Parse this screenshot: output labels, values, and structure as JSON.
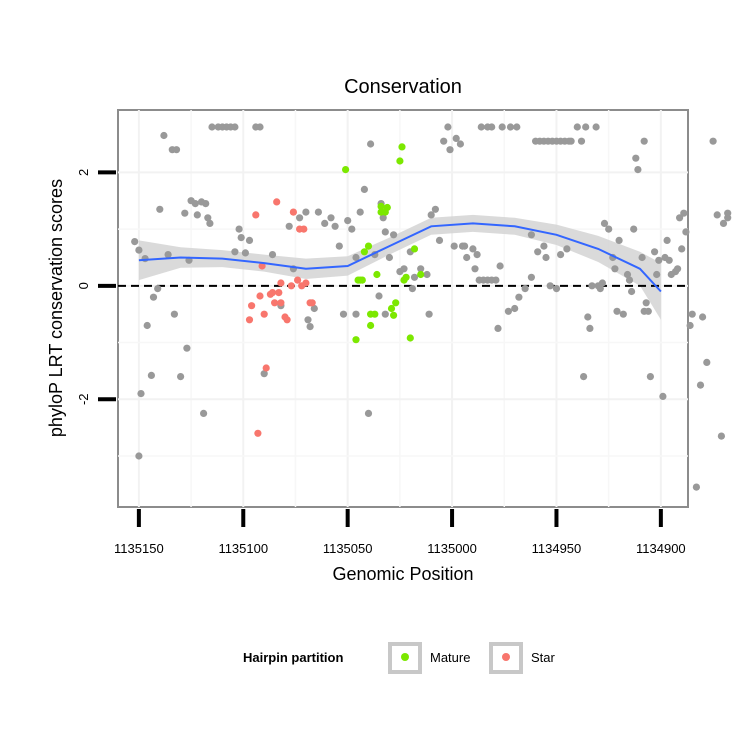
{
  "chart_data": {
    "type": "scatter",
    "title": "Conservation",
    "xlabel": "Genomic Position",
    "ylabel": "phyloP LRT conservation scores",
    "x_reversed": true,
    "xlim": [
      1134887,
      1135160
    ],
    "ylim": [
      -3.9,
      3.1
    ],
    "x_ticks": [
      1135150,
      1135100,
      1135050,
      1135000,
      1134950,
      1134900
    ],
    "x_tick_labels": [
      "1135150",
      "1135100",
      "1135050",
      "1135000",
      "1134950",
      "1134900"
    ],
    "y_ticks": [
      -2,
      0,
      2
    ],
    "y_tick_labels": [
      "-2",
      "0",
      "2"
    ],
    "grid": true,
    "reference_line": {
      "y": 0,
      "style": "dashed"
    },
    "colors": {
      "other": "#999999",
      "mature": "#7CE800",
      "star": "#F8766D",
      "smooth_line": "#3366FF",
      "smooth_band": "#D3D3D3"
    },
    "legend": {
      "title": "Hairpin partition",
      "position": "bottom",
      "entries": [
        {
          "label": "Mature",
          "series": "mature"
        },
        {
          "label": "Star",
          "series": "star"
        }
      ]
    },
    "series": [
      {
        "name": "other",
        "points": [
          [
            1135152,
            0.78
          ],
          [
            1135150,
            0.63
          ],
          [
            1135149,
            -1.9
          ],
          [
            1135150,
            -3.0
          ],
          [
            1135147,
            0.48
          ],
          [
            1135146,
            -0.7
          ],
          [
            1135144,
            -1.58
          ],
          [
            1135143,
            -0.2
          ],
          [
            1135141,
            -0.05
          ],
          [
            1135140,
            1.35
          ],
          [
            1135138,
            2.65
          ],
          [
            1135136,
            0.55
          ],
          [
            1135134,
            2.4
          ],
          [
            1135132,
            2.4
          ],
          [
            1135133,
            -0.5
          ],
          [
            1135130,
            -1.6
          ],
          [
            1135128,
            1.28
          ],
          [
            1135127,
            -1.1
          ],
          [
            1135126,
            0.45
          ],
          [
            1135125,
            1.5
          ],
          [
            1135123,
            1.45
          ],
          [
            1135122,
            1.25
          ],
          [
            1135120,
            1.48
          ],
          [
            1135119,
            -2.25
          ],
          [
            1135118,
            1.45
          ],
          [
            1135117,
            1.2
          ],
          [
            1135116,
            1.1
          ],
          [
            1135115,
            2.8
          ],
          [
            1135112,
            2.8
          ],
          [
            1135110,
            2.8
          ],
          [
            1135108,
            2.8
          ],
          [
            1135106,
            2.8
          ],
          [
            1135104,
            2.8
          ],
          [
            1135104,
            0.6
          ],
          [
            1135102,
            1.0
          ],
          [
            1135101,
            0.85
          ],
          [
            1135099,
            0.58
          ],
          [
            1135097,
            0.8
          ],
          [
            1135094,
            2.8
          ],
          [
            1135092,
            2.8
          ],
          [
            1135090,
            -1.55
          ],
          [
            1135086,
            0.55
          ],
          [
            1135082,
            -0.35
          ],
          [
            1135078,
            1.05
          ],
          [
            1135076,
            0.3
          ],
          [
            1135073,
            1.2
          ],
          [
            1135070,
            1.3
          ],
          [
            1135069,
            -0.6
          ],
          [
            1135068,
            -0.72
          ],
          [
            1135066,
            -0.4
          ],
          [
            1135064,
            1.3
          ],
          [
            1135061,
            1.1
          ],
          [
            1135058,
            1.2
          ],
          [
            1135056,
            1.05
          ],
          [
            1135054,
            0.7
          ],
          [
            1135052,
            -0.5
          ],
          [
            1135050,
            1.15
          ],
          [
            1135048,
            1.0
          ],
          [
            1135046,
            0.5
          ],
          [
            1135046,
            -0.5
          ],
          [
            1135044,
            1.3
          ],
          [
            1135042,
            1.7
          ],
          [
            1135040,
            -2.25
          ],
          [
            1135039,
            2.5
          ],
          [
            1135037,
            0.55
          ],
          [
            1135035,
            -0.18
          ],
          [
            1135034,
            1.45
          ],
          [
            1135033,
            1.2
          ],
          [
            1135032,
            -0.5
          ],
          [
            1135032,
            0.95
          ],
          [
            1135030,
            0.5
          ],
          [
            1135028,
            0.9
          ],
          [
            1135025,
            0.25
          ],
          [
            1135023,
            0.3
          ],
          [
            1135020,
            0.6
          ],
          [
            1135019,
            -0.05
          ],
          [
            1135018,
            0.15
          ],
          [
            1135015,
            0.3
          ],
          [
            1135012,
            0.2
          ],
          [
            1135011,
            -0.5
          ],
          [
            1135010,
            1.25
          ],
          [
            1135008,
            1.35
          ],
          [
            1135006,
            0.8
          ],
          [
            1135004,
            2.55
          ],
          [
            1135002,
            2.8
          ],
          [
            1135001,
            2.4
          ],
          [
            1134999,
            0.7
          ],
          [
            1134998,
            2.6
          ],
          [
            1134996,
            2.5
          ],
          [
            1134995,
            0.7
          ],
          [
            1134994,
            0.7
          ],
          [
            1134993,
            0.5
          ],
          [
            1134990,
            0.65
          ],
          [
            1134989,
            0.3
          ],
          [
            1134988,
            0.55
          ],
          [
            1134987,
            0.1
          ],
          [
            1134985,
            0.1
          ],
          [
            1134983,
            0.1
          ],
          [
            1134981,
            0.1
          ],
          [
            1134979,
            0.1
          ],
          [
            1134977,
            0.35
          ],
          [
            1134986,
            2.8
          ],
          [
            1134983,
            2.8
          ],
          [
            1134981,
            2.8
          ],
          [
            1134976,
            2.8
          ],
          [
            1134972,
            2.8
          ],
          [
            1134969,
            2.8
          ],
          [
            1134978,
            -0.75
          ],
          [
            1134973,
            -0.45
          ],
          [
            1134970,
            -0.4
          ],
          [
            1134968,
            -0.2
          ],
          [
            1134965,
            -0.05
          ],
          [
            1134962,
            0.9
          ],
          [
            1134960,
            2.55
          ],
          [
            1134958,
            2.55
          ],
          [
            1134956,
            2.55
          ],
          [
            1134954,
            2.55
          ],
          [
            1134952,
            2.55
          ],
          [
            1134950,
            2.55
          ],
          [
            1134948,
            2.55
          ],
          [
            1134946,
            2.55
          ],
          [
            1134944,
            2.55
          ],
          [
            1134962,
            0.15
          ],
          [
            1134959,
            0.6
          ],
          [
            1134956,
            0.7
          ],
          [
            1134955,
            0.5
          ],
          [
            1134953,
            0.0
          ],
          [
            1134950,
            -0.05
          ],
          [
            1134948,
            0.55
          ],
          [
            1134945,
            0.65
          ],
          [
            1134943,
            2.55
          ],
          [
            1134940,
            2.8
          ],
          [
            1134938,
            2.55
          ],
          [
            1134937,
            -1.6
          ],
          [
            1134936,
            2.8
          ],
          [
            1134935,
            -0.55
          ],
          [
            1134934,
            -0.75
          ],
          [
            1134933,
            0.0
          ],
          [
            1134931,
            2.8
          ],
          [
            1134930,
            0.0
          ],
          [
            1134929,
            -0.05
          ],
          [
            1134928,
            0.05
          ],
          [
            1134927,
            1.1
          ],
          [
            1134925,
            1.0
          ],
          [
            1134923,
            0.5
          ],
          [
            1134922,
            0.3
          ],
          [
            1134921,
            -0.45
          ],
          [
            1134920,
            0.8
          ],
          [
            1134918,
            -0.5
          ],
          [
            1134916,
            0.2
          ],
          [
            1134915,
            0.1
          ],
          [
            1134914,
            -0.1
          ],
          [
            1134913,
            1.0
          ],
          [
            1134912,
            2.25
          ],
          [
            1134911,
            2.05
          ],
          [
            1134909,
            0.5
          ],
          [
            1134908,
            -0.45
          ],
          [
            1134907,
            -0.3
          ],
          [
            1134906,
            -0.45
          ],
          [
            1134905,
            -1.6
          ],
          [
            1134903,
            0.6
          ],
          [
            1134902,
            0.2
          ],
          [
            1134901,
            0.45
          ],
          [
            1134899,
            -1.95
          ],
          [
            1134898,
            0.5
          ],
          [
            1134897,
            0.8
          ],
          [
            1134896,
            0.45
          ],
          [
            1134895,
            0.2
          ],
          [
            1134893,
            0.25
          ],
          [
            1134892,
            0.3
          ],
          [
            1134891,
            1.2
          ],
          [
            1134890,
            0.65
          ],
          [
            1134889,
            1.28
          ],
          [
            1134888,
            0.95
          ],
          [
            1134886,
            -0.7
          ],
          [
            1134885,
            -0.5
          ],
          [
            1134883,
            -3.55
          ],
          [
            1134881,
            -1.75
          ],
          [
            1134880,
            -0.55
          ],
          [
            1134878,
            -1.35
          ],
          [
            1134875,
            2.55
          ],
          [
            1134873,
            1.25
          ],
          [
            1134871,
            -2.65
          ],
          [
            1134870,
            1.1
          ],
          [
            1134868,
            1.2
          ],
          [
            1134868,
            1.28
          ],
          [
            1134908,
            2.55
          ]
        ]
      },
      {
        "name": "mature",
        "points": [
          [
            1135051,
            2.05
          ],
          [
            1135046,
            -0.95
          ],
          [
            1135045,
            0.1
          ],
          [
            1135044,
            0.1
          ],
          [
            1135043,
            0.1
          ],
          [
            1135042,
            0.6
          ],
          [
            1135040,
            0.7
          ],
          [
            1135039,
            -0.7
          ],
          [
            1135039,
            -0.5
          ],
          [
            1135037,
            -0.5
          ],
          [
            1135036,
            0.2
          ],
          [
            1135034,
            1.4
          ],
          [
            1135034,
            1.3
          ],
          [
            1135032,
            1.3
          ],
          [
            1135031,
            1.38
          ],
          [
            1135029,
            -0.4
          ],
          [
            1135028,
            -0.52
          ],
          [
            1135027,
            -0.3
          ],
          [
            1135025,
            2.2
          ],
          [
            1135024,
            2.45
          ],
          [
            1135023,
            0.1
          ],
          [
            1135022,
            0.15
          ],
          [
            1135020,
            -0.92
          ],
          [
            1135018,
            0.65
          ],
          [
            1135015,
            0.2
          ]
        ]
      },
      {
        "name": "star",
        "points": [
          [
            1135097,
            -0.6
          ],
          [
            1135096,
            -0.35
          ],
          [
            1135094,
            1.25
          ],
          [
            1135093,
            -2.6
          ],
          [
            1135092,
            -0.18
          ],
          [
            1135091,
            0.35
          ],
          [
            1135090,
            -0.5
          ],
          [
            1135089,
            -1.45
          ],
          [
            1135087,
            -0.15
          ],
          [
            1135086,
            -0.12
          ],
          [
            1135085,
            -0.3
          ],
          [
            1135084,
            1.48
          ],
          [
            1135083,
            -0.12
          ],
          [
            1135082,
            -0.3
          ],
          [
            1135082,
            0.05
          ],
          [
            1135080,
            -0.55
          ],
          [
            1135079,
            -0.6
          ],
          [
            1135077,
            0.0
          ],
          [
            1135076,
            1.3
          ],
          [
            1135074,
            0.1
          ],
          [
            1135073,
            1.0
          ],
          [
            1135072,
            0.0
          ],
          [
            1135071,
            1.0
          ],
          [
            1135070,
            0.05
          ],
          [
            1135068,
            -0.3
          ],
          [
            1135067,
            -0.3
          ]
        ]
      }
    ],
    "smooth": {
      "x": [
        1135150,
        1135130,
        1135110,
        1135090,
        1135070,
        1135050,
        1135030,
        1135010,
        1134990,
        1134970,
        1134950,
        1134930,
        1134910,
        1134900
      ],
      "y": [
        0.45,
        0.5,
        0.48,
        0.4,
        0.3,
        0.35,
        0.7,
        1.05,
        1.1,
        1.05,
        0.9,
        0.65,
        0.3,
        -0.1
      ],
      "lower": [
        0.1,
        0.32,
        0.33,
        0.25,
        0.12,
        0.18,
        0.55,
        0.9,
        0.95,
        0.9,
        0.72,
        0.42,
        0.0,
        -0.6
      ],
      "upper": [
        0.8,
        0.68,
        0.63,
        0.55,
        0.48,
        0.52,
        0.85,
        1.2,
        1.25,
        1.2,
        1.08,
        0.88,
        0.6,
        0.4
      ]
    }
  }
}
